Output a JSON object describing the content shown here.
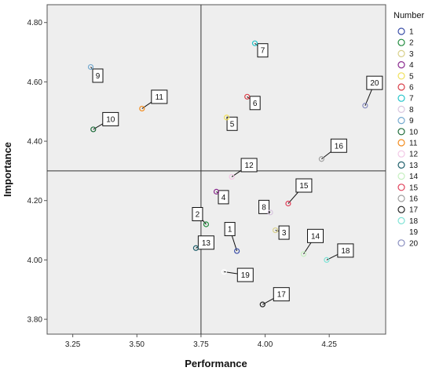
{
  "chart_data": {
    "type": "scatter",
    "xlabel": "Performance",
    "ylabel": "Importance",
    "xlim": [
      3.15,
      4.47
    ],
    "ylim": [
      3.75,
      4.86
    ],
    "xticks": [
      "3.25",
      "3.50",
      "3.75",
      "4.00",
      "4.25"
    ],
    "xtick_values": [
      3.25,
      3.5,
      3.75,
      4.0,
      4.25
    ],
    "yticks": [
      "3.80",
      "4.00",
      "4.20",
      "4.40",
      "4.60",
      "4.80"
    ],
    "ytick_values": [
      3.8,
      4.0,
      4.2,
      4.4,
      4.6,
      4.8
    ],
    "reference_lines": {
      "x": 3.75,
      "y": 4.3
    },
    "grid": false,
    "legend_title": "Number",
    "legend_position": "right",
    "points": [
      {
        "label": "1",
        "x": 3.89,
        "y": 4.03,
        "color": "#3b4fa8"
      },
      {
        "label": "2",
        "x": 3.77,
        "y": 4.12,
        "color": "#1f8a3c"
      },
      {
        "label": "3",
        "x": 4.04,
        "y": 4.1,
        "color": "#d8d08a"
      },
      {
        "label": "4",
        "x": 3.81,
        "y": 4.23,
        "color": "#8a2a8e"
      },
      {
        "label": "5",
        "x": 3.85,
        "y": 4.48,
        "color": "#f0e05a"
      },
      {
        "label": "6",
        "x": 3.93,
        "y": 4.55,
        "color": "#d9404a"
      },
      {
        "label": "7",
        "x": 3.96,
        "y": 4.73,
        "color": "#25c4c9"
      },
      {
        "label": "8",
        "x": 4.02,
        "y": 4.16,
        "color": "#d9c7e0"
      },
      {
        "label": "9",
        "x": 3.32,
        "y": 4.65,
        "color": "#74a9cf"
      },
      {
        "label": "10",
        "x": 3.33,
        "y": 4.44,
        "color": "#1e6b3a"
      },
      {
        "label": "11",
        "x": 3.52,
        "y": 4.51,
        "color": "#f28c1e"
      },
      {
        "label": "12",
        "x": 3.87,
        "y": 4.28,
        "color": "#f2c8e6"
      },
      {
        "label": "13",
        "x": 3.73,
        "y": 4.04,
        "color": "#1f5f6b"
      },
      {
        "label": "14",
        "x": 4.15,
        "y": 4.02,
        "color": "#c6efc0"
      },
      {
        "label": "15",
        "x": 4.09,
        "y": 4.19,
        "color": "#e0405a"
      },
      {
        "label": "16",
        "x": 4.22,
        "y": 4.34,
        "color": "#a0a0a0"
      },
      {
        "label": "17",
        "x": 3.99,
        "y": 3.85,
        "color": "#222222"
      },
      {
        "label": "18",
        "x": 4.24,
        "y": 4.0,
        "color": "#7fe3d6"
      },
      {
        "label": "19",
        "x": 3.84,
        "y": 3.96,
        "color": "#ffffff"
      },
      {
        "label": "20",
        "x": 4.39,
        "y": 4.52,
        "color": "#8a8fc0"
      }
    ]
  }
}
